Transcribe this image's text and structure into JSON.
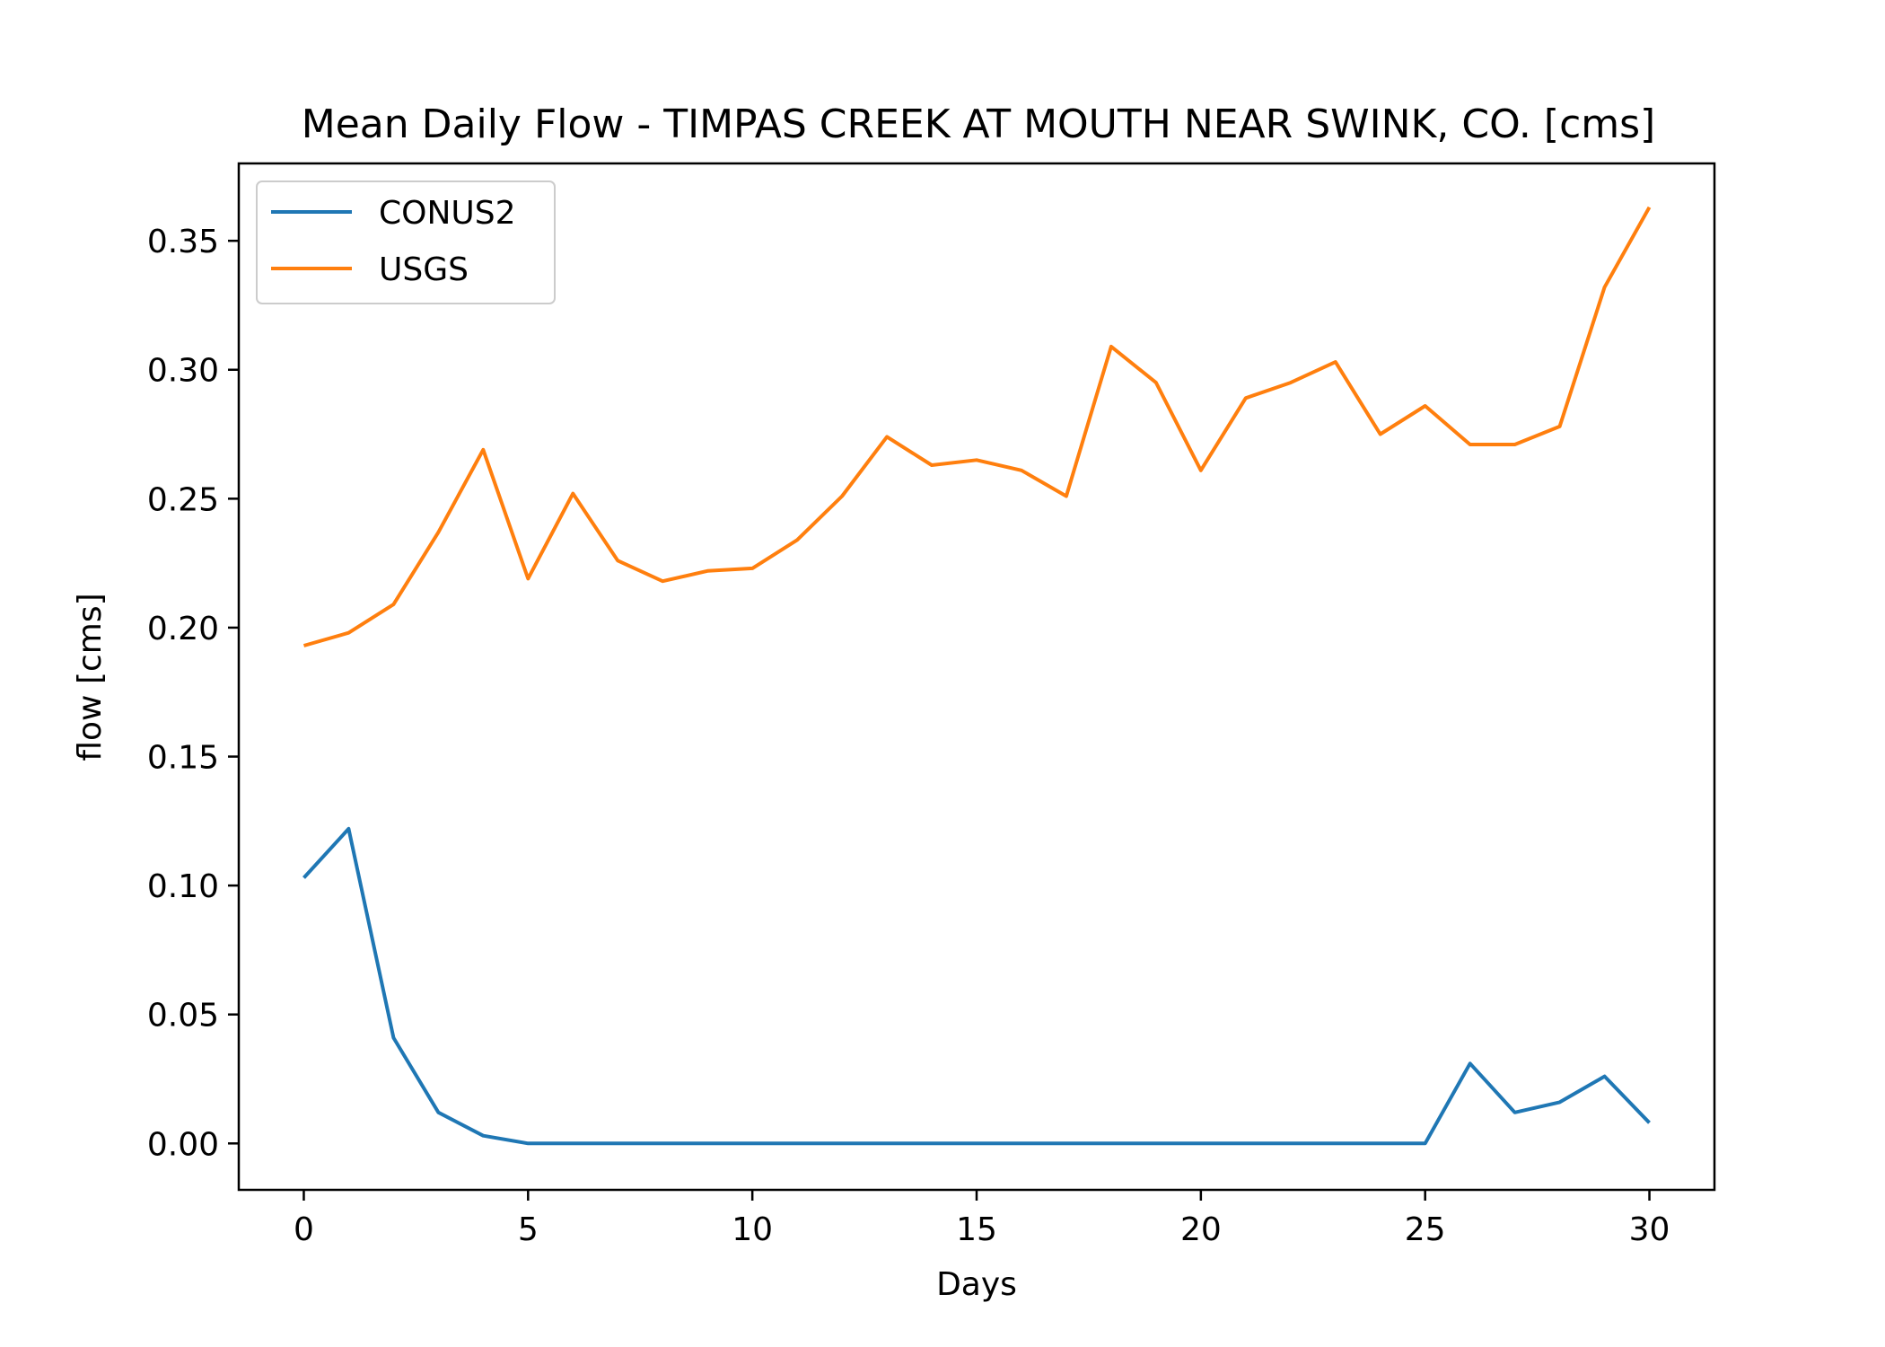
{
  "chart_data": {
    "type": "line",
    "title": "Mean Daily Flow - TIMPAS CREEK AT MOUTH NEAR SWINK, CO. [cms]",
    "xlabel": "Days",
    "ylabel": "flow [cms]",
    "xlim": [
      -1.45,
      31.45
    ],
    "ylim": [
      -0.018,
      0.38
    ],
    "x_ticks": [
      0,
      5,
      10,
      15,
      20,
      25,
      30
    ],
    "y_ticks": [
      0.0,
      0.05,
      0.1,
      0.15,
      0.2,
      0.25,
      0.3,
      0.35
    ],
    "x_tick_labels": [
      "0",
      "5",
      "10",
      "15",
      "20",
      "25",
      "30"
    ],
    "y_tick_labels": [
      "0.00",
      "0.05",
      "0.10",
      "0.15",
      "0.20",
      "0.25",
      "0.30",
      "0.35"
    ],
    "grid": false,
    "legend_position": "top-left",
    "x": [
      0,
      1,
      2,
      3,
      4,
      5,
      6,
      7,
      8,
      9,
      10,
      11,
      12,
      13,
      14,
      15,
      16,
      17,
      18,
      19,
      20,
      21,
      22,
      23,
      24,
      25,
      26,
      27,
      28,
      29,
      30
    ],
    "series": [
      {
        "name": "CONUS2",
        "color": "#1f77b4",
        "values": [
          0.103,
          0.122,
          0.041,
          0.012,
          0.003,
          0.0,
          0.0,
          0.0,
          0.0,
          0.0,
          0.0,
          0.0,
          0.0,
          0.0,
          0.0,
          0.0,
          0.0,
          0.0,
          0.0,
          0.0,
          0.0,
          0.0,
          0.0,
          0.0,
          0.0,
          0.0,
          0.031,
          0.012,
          0.016,
          0.026,
          0.008
        ]
      },
      {
        "name": "USGS",
        "color": "#ff7f0e",
        "values": [
          0.193,
          0.198,
          0.209,
          0.237,
          0.269,
          0.219,
          0.252,
          0.226,
          0.218,
          0.222,
          0.223,
          0.234,
          0.251,
          0.274,
          0.263,
          0.265,
          0.261,
          0.251,
          0.309,
          0.295,
          0.261,
          0.289,
          0.295,
          0.303,
          0.275,
          0.286,
          0.271,
          0.271,
          0.278,
          0.332,
          0.363
        ]
      }
    ]
  }
}
